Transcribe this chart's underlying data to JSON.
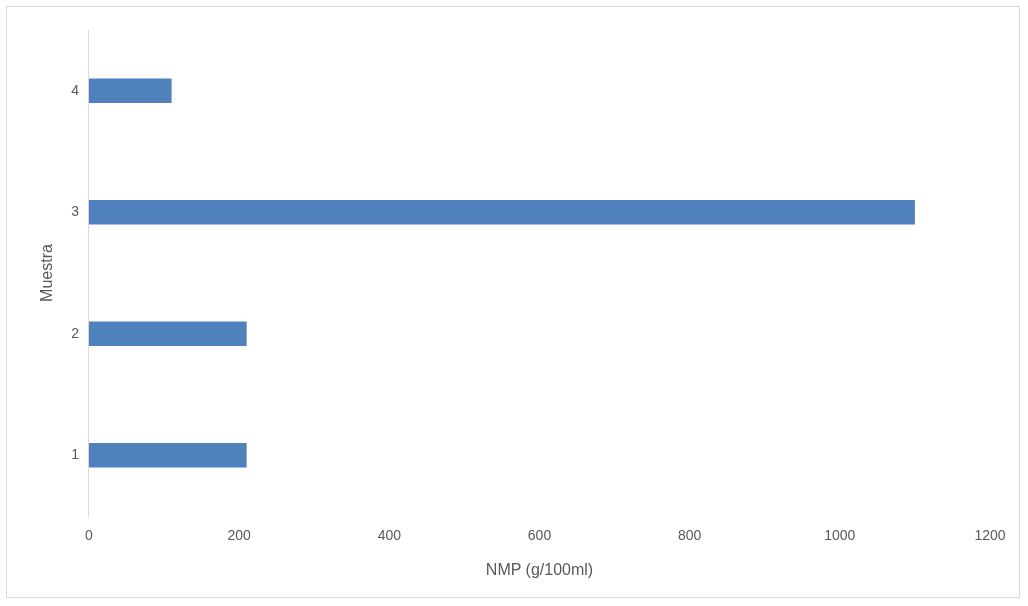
{
  "chart_data": {
    "type": "bar",
    "orientation": "horizontal",
    "xlabel": "NMP (g/100ml)",
    "ylabel": "Muestra",
    "categories": [
      "4",
      "3",
      "2",
      "1"
    ],
    "values": [
      110,
      1100,
      210,
      210
    ],
    "color": "#4f81bd",
    "xlim": [
      0,
      1200
    ],
    "xticks": [
      0,
      200,
      400,
      600,
      800,
      1000,
      1200
    ],
    "grid": false,
    "legend": false
  }
}
